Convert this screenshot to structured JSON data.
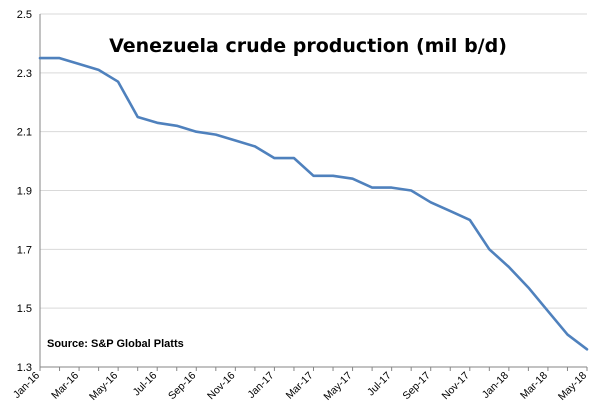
{
  "chart_data": {
    "type": "line",
    "title": "Venezuela crude production (mil b/d)",
    "annotation": "Source: S&P Global Platts",
    "xlabel": "",
    "ylabel": "",
    "ylim": [
      1.3,
      2.5
    ],
    "yticks": [
      "1.3",
      "1.5",
      "1.7",
      "1.9",
      "2.1",
      "2.3",
      "2.5"
    ],
    "grid": true,
    "legend": "none",
    "categories": [
      "Jan-16",
      "Feb-16",
      "Mar-16",
      "Apr-16",
      "May-16",
      "Jun-16",
      "Jul-16",
      "Aug-16",
      "Sep-16",
      "Oct-16",
      "Nov-16",
      "Dec-16",
      "Jan-17",
      "Feb-17",
      "Mar-17",
      "Apr-17",
      "May-17",
      "Jun-17",
      "Jul-17",
      "Aug-17",
      "Sep-17",
      "Oct-17",
      "Nov-17",
      "Dec-17",
      "Jan-18",
      "Feb-18",
      "Mar-18",
      "Apr-18",
      "May-18"
    ],
    "x_tick_labels": [
      "Jan-16",
      "Mar-16",
      "May-16",
      "Jul-16",
      "Sep-16",
      "Nov-16",
      "Jan-17",
      "Mar-17",
      "May-17",
      "Jul-17",
      "Sep-17",
      "Nov-17",
      "Jan-18",
      "Mar-18",
      "May-18"
    ],
    "series": [
      {
        "color": "#4f81bd",
        "values": [
          2.35,
          2.35,
          2.33,
          2.31,
          2.27,
          2.15,
          2.13,
          2.12,
          2.1,
          2.09,
          2.07,
          2.05,
          2.01,
          2.01,
          1.95,
          1.95,
          1.94,
          1.91,
          1.91,
          1.9,
          1.86,
          1.83,
          1.8,
          1.7,
          1.64,
          1.57,
          1.49,
          1.41,
          1.36
        ]
      }
    ]
  }
}
